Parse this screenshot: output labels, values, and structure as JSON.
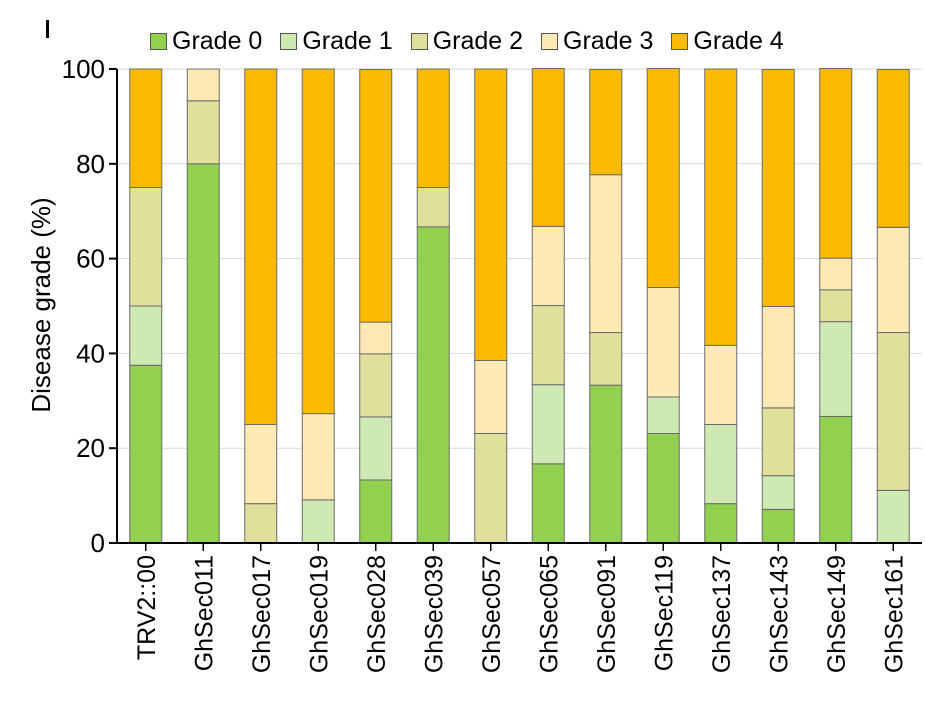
{
  "chart_data": {
    "type": "bar",
    "stacked": true,
    "ylabel": "Disease grade (%)",
    "ylim": [
      0,
      100
    ],
    "yticks": [
      "0",
      "20",
      "40",
      "60",
      "80",
      "100"
    ],
    "grid": true,
    "legend_position": "top",
    "categories": [
      "TRV2::00",
      "GhSec011",
      "GhSec017",
      "GhSec019",
      "GhSec028",
      "GhSec039",
      "GhSec057",
      "GhSec065",
      "GhSec091",
      "GhSec119",
      "GhSec137",
      "GhSec143",
      "GhSec149",
      "GhSec161"
    ],
    "series": [
      {
        "name": "Grade 0",
        "color": "#92d050",
        "values": [
          37.5,
          80.0,
          0,
          0,
          13.3,
          66.7,
          0,
          16.7,
          33.3,
          23.1,
          8.3,
          7.1,
          26.7,
          0
        ]
      },
      {
        "name": "Grade 1",
        "color": "#cfe9b3",
        "values": [
          12.5,
          0,
          0,
          9.1,
          13.3,
          0,
          0,
          16.7,
          0,
          7.7,
          16.7,
          7.1,
          20.0,
          11.1
        ]
      },
      {
        "name": "Grade 2",
        "color": "#e1df9c",
        "values": [
          25.0,
          13.3,
          8.3,
          0,
          13.3,
          8.3,
          23.1,
          16.7,
          11.1,
          0,
          0,
          14.3,
          6.7,
          33.3
        ]
      },
      {
        "name": "Grade 3",
        "color": "#fde9b3",
        "values": [
          0,
          6.7,
          16.7,
          18.2,
          6.7,
          0,
          15.4,
          16.7,
          33.3,
          23.1,
          16.7,
          21.4,
          6.7,
          22.2
        ]
      },
      {
        "name": "Grade 4",
        "color": "#fcba00",
        "values": [
          25.0,
          0,
          75.0,
          72.7,
          53.3,
          25.0,
          61.5,
          33.3,
          22.2,
          46.2,
          58.3,
          50.0,
          40.0,
          33.3
        ]
      }
    ]
  }
}
